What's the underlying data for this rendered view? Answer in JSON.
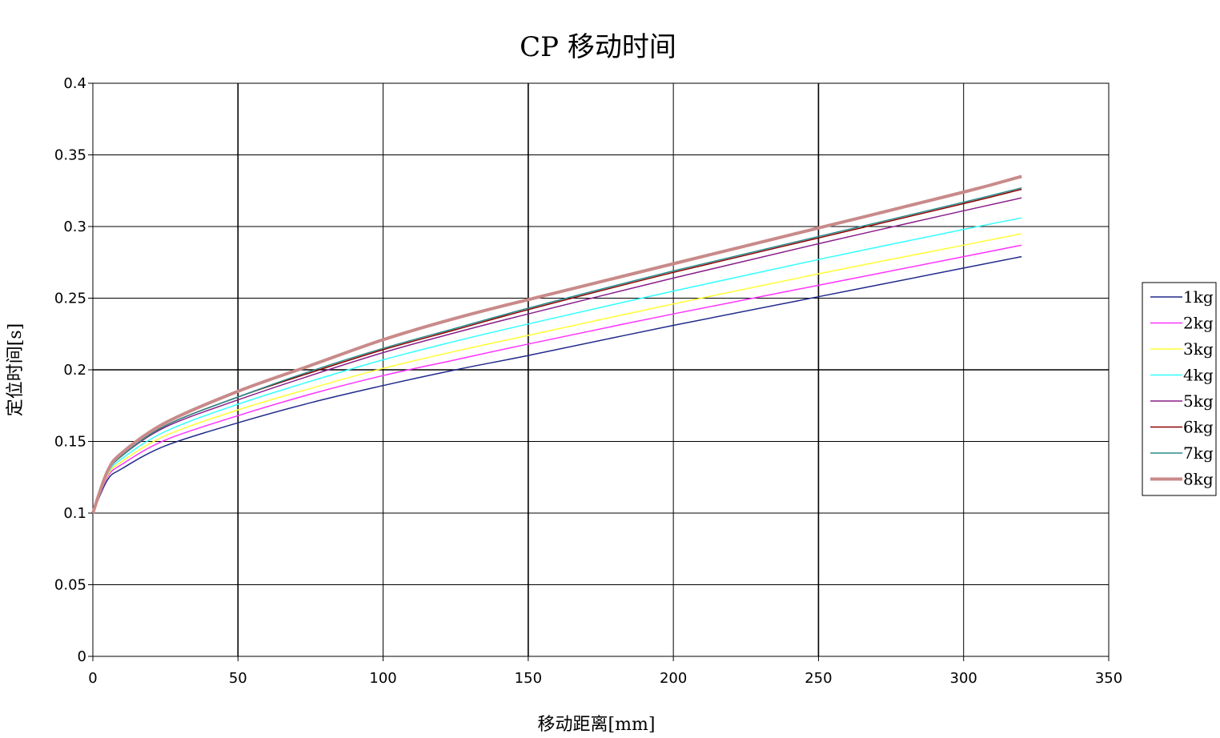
{
  "chart_data": {
    "type": "line",
    "title": "CP 移动时间",
    "xlabel": "移动距离[mm]",
    "ylabel": "定位时间[s]",
    "xlim": [
      0,
      350
    ],
    "ylim": [
      0,
      0.4
    ],
    "xticks": [
      0,
      50,
      100,
      150,
      200,
      250,
      300,
      350
    ],
    "yticks": [
      0,
      0.05,
      0.1,
      0.15,
      0.2,
      0.25,
      0.3,
      0.35,
      0.4
    ],
    "xtick_labels": [
      "0",
      "50",
      "100",
      "150",
      "200",
      "250",
      "300",
      "350"
    ],
    "ytick_labels": [
      "0",
      "0.05",
      "0.1",
      "0.15",
      "0.2",
      "0.25",
      "0.3",
      "0.35",
      "0.4"
    ],
    "grid": true,
    "legend_position": "right",
    "x": [
      0,
      5,
      10,
      25,
      50,
      75,
      100,
      125,
      150,
      200,
      250,
      300,
      320
    ],
    "series": [
      {
        "name": "1kg",
        "color": "#1f2a8a",
        "width": 1.5,
        "values": [
          0.1,
          0.123,
          0.131,
          0.147,
          0.163,
          0.177,
          0.189,
          0.2,
          0.21,
          0.231,
          0.251,
          0.271,
          0.279
        ]
      },
      {
        "name": "2kg",
        "color": "#ff33ff",
        "width": 1.5,
        "values": [
          0.1,
          0.125,
          0.134,
          0.151,
          0.168,
          0.183,
          0.196,
          0.207,
          0.218,
          0.239,
          0.259,
          0.279,
          0.287
        ]
      },
      {
        "name": "3kg",
        "color": "#ffff33",
        "width": 1.5,
        "values": [
          0.1,
          0.126,
          0.136,
          0.154,
          0.172,
          0.187,
          0.201,
          0.213,
          0.224,
          0.246,
          0.267,
          0.287,
          0.295
        ]
      },
      {
        "name": "4kg",
        "color": "#33ffff",
        "width": 1.5,
        "values": [
          0.1,
          0.127,
          0.138,
          0.157,
          0.176,
          0.192,
          0.207,
          0.22,
          0.232,
          0.255,
          0.277,
          0.298,
          0.306
        ]
      },
      {
        "name": "5kg",
        "color": "#8a1f8a",
        "width": 1.5,
        "values": [
          0.1,
          0.128,
          0.14,
          0.16,
          0.179,
          0.196,
          0.212,
          0.226,
          0.239,
          0.264,
          0.288,
          0.311,
          0.32
        ]
      },
      {
        "name": "6kg",
        "color": "#8b0000",
        "width": 1.5,
        "values": [
          0.1,
          0.128,
          0.14,
          0.161,
          0.181,
          0.198,
          0.214,
          0.228,
          0.242,
          0.268,
          0.292,
          0.316,
          0.326
        ]
      },
      {
        "name": "7kg",
        "color": "#2a8a8a",
        "width": 1.5,
        "values": [
          0.1,
          0.128,
          0.14,
          0.161,
          0.181,
          0.199,
          0.215,
          0.229,
          0.243,
          0.269,
          0.293,
          0.317,
          0.327
        ]
      },
      {
        "name": "8kg",
        "color": "#c98a8a",
        "width": 4,
        "values": [
          0.1,
          0.129,
          0.142,
          0.163,
          0.185,
          0.203,
          0.221,
          0.236,
          0.249,
          0.274,
          0.299,
          0.324,
          0.335
        ]
      }
    ]
  }
}
